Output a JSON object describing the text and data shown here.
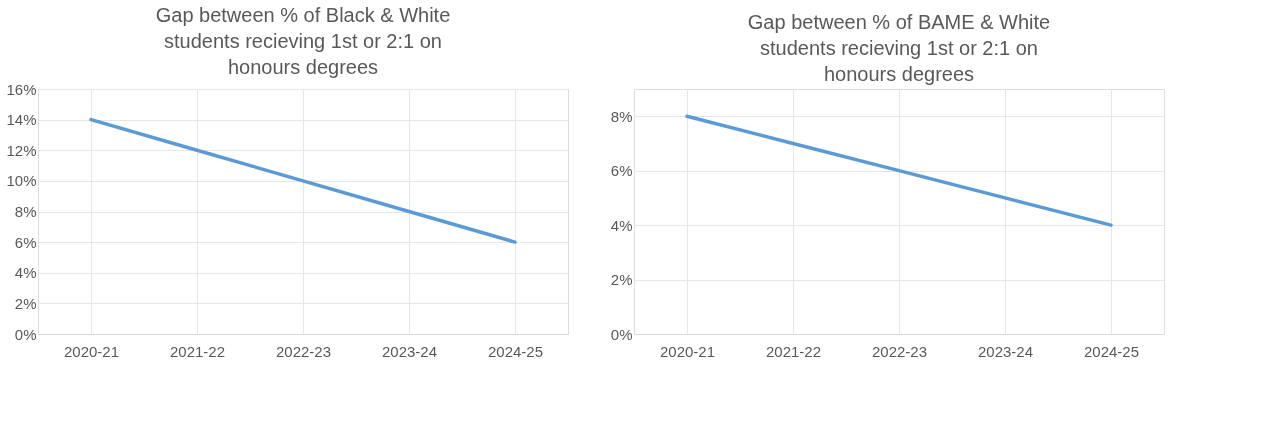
{
  "chart_data": [
    {
      "type": "line",
      "title": "Gap between % of Black & White\nstudents recieving 1st or 2:1 on\nhonours degrees",
      "categories": [
        "2020-21",
        "2021-22",
        "2022-23",
        "2023-24",
        "2024-25"
      ],
      "series": [
        {
          "color": "#5b9bd5",
          "values": [
            14,
            12,
            10,
            8,
            6
          ]
        }
      ],
      "ylim": [
        0,
        16
      ],
      "yticks": [
        {
          "value": 0,
          "label": "0%"
        },
        {
          "value": 2,
          "label": "2%"
        },
        {
          "value": 4,
          "label": "4%"
        },
        {
          "value": 6,
          "label": "6%"
        },
        {
          "value": 8,
          "label": "8%"
        },
        {
          "value": 10,
          "label": "10%"
        },
        {
          "value": 12,
          "label": "12%"
        },
        {
          "value": 14,
          "label": "14%"
        },
        {
          "value": 16,
          "label": "16%"
        }
      ],
      "grid": true
    },
    {
      "type": "line",
      "title": "Gap between % of BAME & White\nstudents recieving 1st or 2:1 on\nhonours degrees",
      "categories": [
        "2020-21",
        "2021-22",
        "2022-23",
        "2023-24",
        "2024-25"
      ],
      "series": [
        {
          "color": "#5b9bd5",
          "values": [
            8,
            7,
            6,
            5,
            4
          ]
        }
      ],
      "ylim": [
        0,
        9
      ],
      "yticks": [
        {
          "value": 0,
          "label": "0%"
        },
        {
          "value": 2,
          "label": "2%"
        },
        {
          "value": 4,
          "label": "4%"
        },
        {
          "value": 6,
          "label": "6%"
        },
        {
          "value": 8,
          "label": "8%"
        }
      ],
      "grid": true
    }
  ]
}
